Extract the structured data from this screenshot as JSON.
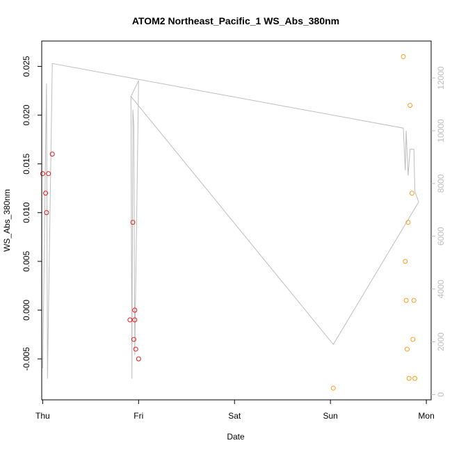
{
  "chart_data": {
    "type": "scatter",
    "title": "ATOM2 Northeast_Pacific_1 WS_Abs_380nm",
    "xlabel": "Date",
    "ylabel": "WS_Abs_380nm",
    "x_ticks": [
      "Thu",
      "Fri",
      "Sat",
      "Sun",
      "Mon"
    ],
    "xlim": [
      -0.01,
      4.05
    ],
    "ylim": [
      -0.0092,
      0.0276
    ],
    "y_ticks": [
      "-0.005",
      "0.000",
      "0.005",
      "0.010",
      "0.015",
      "0.020",
      "0.025"
    ],
    "y2lim": [
      -200,
      13400
    ],
    "y2_ticks": [
      "0",
      "2000",
      "4000",
      "6000",
      "8000",
      "10000",
      "12000"
    ],
    "colors": {
      "series_a": "#e41a1c",
      "series_b": "#ff9a1c",
      "line": "#bdbdbd",
      "right_axis": "#bdbdbd",
      "frame": "#000000"
    },
    "series": [
      {
        "marker": "circle-open",
        "color": "#e41a1c",
        "x": [
          0.0,
          0.03,
          0.04,
          0.06,
          0.1,
          0.91,
          0.94,
          0.95,
          0.96,
          0.96,
          0.97,
          1.0
        ],
        "y": [
          0.014,
          0.012,
          0.01,
          0.014,
          0.016,
          -0.001,
          0.009,
          -0.003,
          0.0,
          -0.001,
          -0.004,
          -0.005
        ]
      },
      {
        "marker": "circle-open",
        "color": "#ff9a1c",
        "x": [
          3.03,
          3.76,
          3.78,
          3.79,
          3.8,
          3.81,
          3.82,
          3.83,
          3.85,
          3.86,
          3.87,
          3.88
        ],
        "y": [
          -0.008,
          0.026,
          0.005,
          0.001,
          -0.004,
          0.009,
          -0.007,
          0.021,
          0.012,
          -0.003,
          0.001,
          -0.007
        ]
      },
      {
        "type": "line",
        "axis": "right",
        "color": "#bdbdbd",
        "x": [
          0.0,
          0.04,
          0.05,
          0.1,
          3.76,
          3.77,
          3.78,
          3.79,
          3.81,
          3.83,
          3.84,
          3.87,
          3.88,
          3.92,
          3.03,
          0.92,
          0.93,
          0.94,
          0.95,
          0.96,
          1.0,
          0.92
        ],
        "y": [
          1000,
          11800,
          600,
          12550,
          10100,
          9300,
          8500,
          10000,
          8300,
          9300,
          9300,
          9300,
          7700,
          7300,
          1900,
          11300,
          600,
          10800,
          10200,
          1500,
          11900,
          11300
        ]
      }
    ]
  }
}
